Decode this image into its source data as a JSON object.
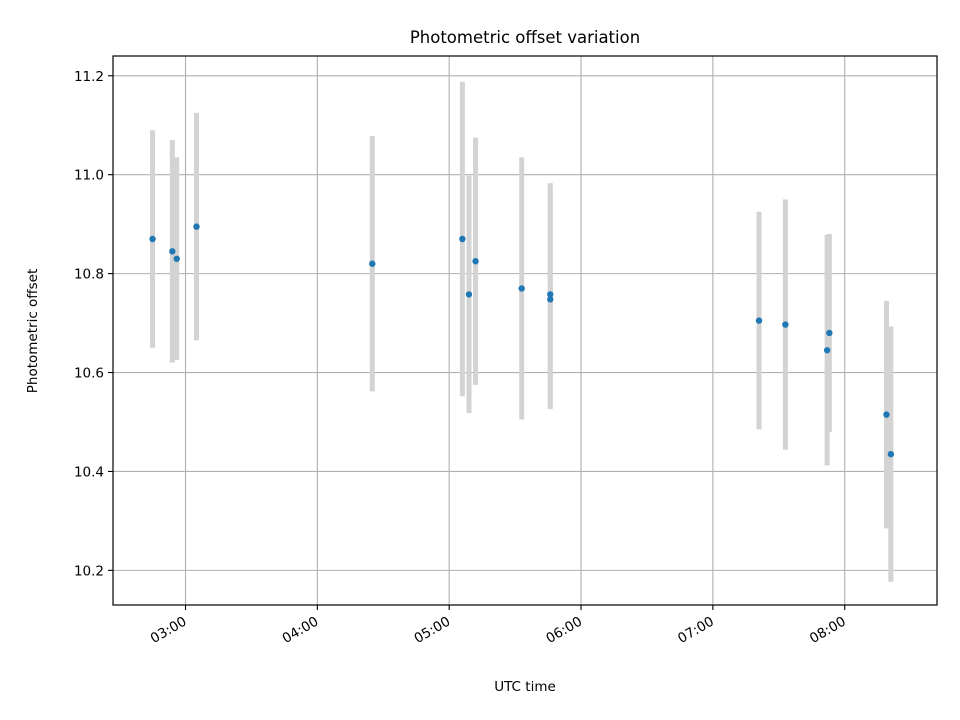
{
  "chart_data": {
    "type": "scatter",
    "title": "Photometric offset variation",
    "xlabel": "UTC time",
    "ylabel": "Photometric offset",
    "x_axis_type": "time",
    "xlim": [
      "02:27",
      "08:42"
    ],
    "ylim": [
      10.13,
      11.24
    ],
    "x_ticks": [
      "03:00",
      "04:00",
      "05:00",
      "06:00",
      "07:00",
      "08:00"
    ],
    "y_ticks": [
      10.2,
      10.4,
      10.6,
      10.8,
      11.0,
      11.2
    ],
    "y_tick_labels": [
      "10.2",
      "10.4",
      "10.6",
      "10.8",
      "11.0",
      "11.2"
    ],
    "grid": true,
    "colors": {
      "points": "#1f77b4",
      "errorbars": "#d3d3d3",
      "grid": "#b0b0b0"
    },
    "points": [
      {
        "t": "02:45",
        "y": 10.87,
        "err": 0.22
      },
      {
        "t": "02:54",
        "y": 10.845,
        "err": 0.225
      },
      {
        "t": "02:56",
        "y": 10.83,
        "err": 0.205
      },
      {
        "t": "03:05",
        "y": 10.895,
        "err": 0.23
      },
      {
        "t": "04:25",
        "y": 10.82,
        "err": 0.258
      },
      {
        "t": "05:06",
        "y": 10.87,
        "err": 0.318
      },
      {
        "t": "05:09",
        "y": 10.758,
        "err": 0.24
      },
      {
        "t": "05:12",
        "y": 10.825,
        "err": 0.25
      },
      {
        "t": "05:33",
        "y": 10.77,
        "err": 0.265
      },
      {
        "t": "05:46",
        "y": 10.758,
        "err": 0.225
      },
      {
        "t": "05:46",
        "y": 10.748,
        "err": 0.222
      },
      {
        "t": "07:21",
        "y": 10.705,
        "err": 0.22
      },
      {
        "t": "07:33",
        "y": 10.697,
        "err": 0.253
      },
      {
        "t": "07:52",
        "y": 10.645,
        "err": 0.233
      },
      {
        "t": "07:53",
        "y": 10.68,
        "err": 0.2
      },
      {
        "t": "08:19",
        "y": 10.515,
        "err": 0.23
      },
      {
        "t": "08:21",
        "y": 10.435,
        "err": 0.258
      }
    ]
  }
}
